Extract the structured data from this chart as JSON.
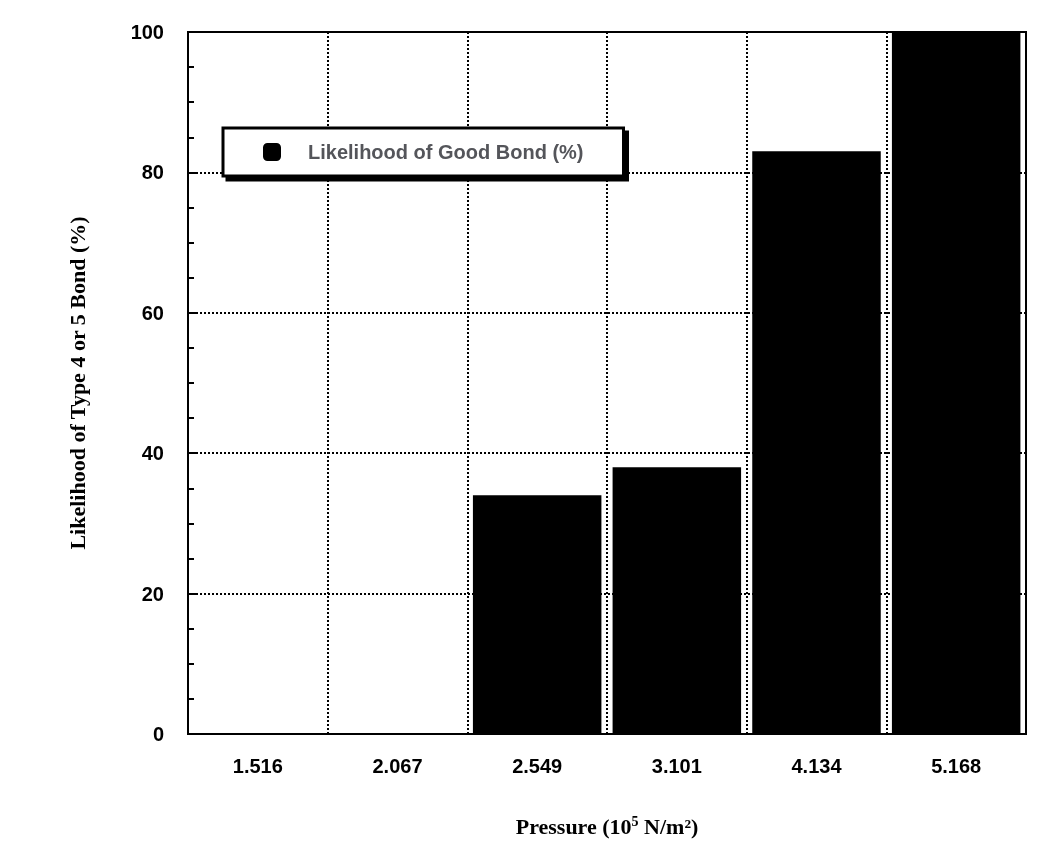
{
  "chart_data": {
    "type": "bar",
    "xlabel": "Pressure (10$^{5}$ N/m²)",
    "ylabel": "Likelihood of Type 4 or 5 Bond (%)",
    "categories": [
      "1.516",
      "2.067",
      "2.549",
      "3.101",
      "4.134",
      "5.168"
    ],
    "series": [
      {
        "name": "Likelihood of Good Bond (%)",
        "color": "#000000",
        "values": [
          0,
          0,
          34,
          38,
          83,
          100
        ]
      }
    ],
    "ylim": [
      0,
      100
    ],
    "yticks": [
      0,
      20,
      40,
      60,
      80,
      100
    ],
    "grid": true,
    "legend": "top left"
  }
}
